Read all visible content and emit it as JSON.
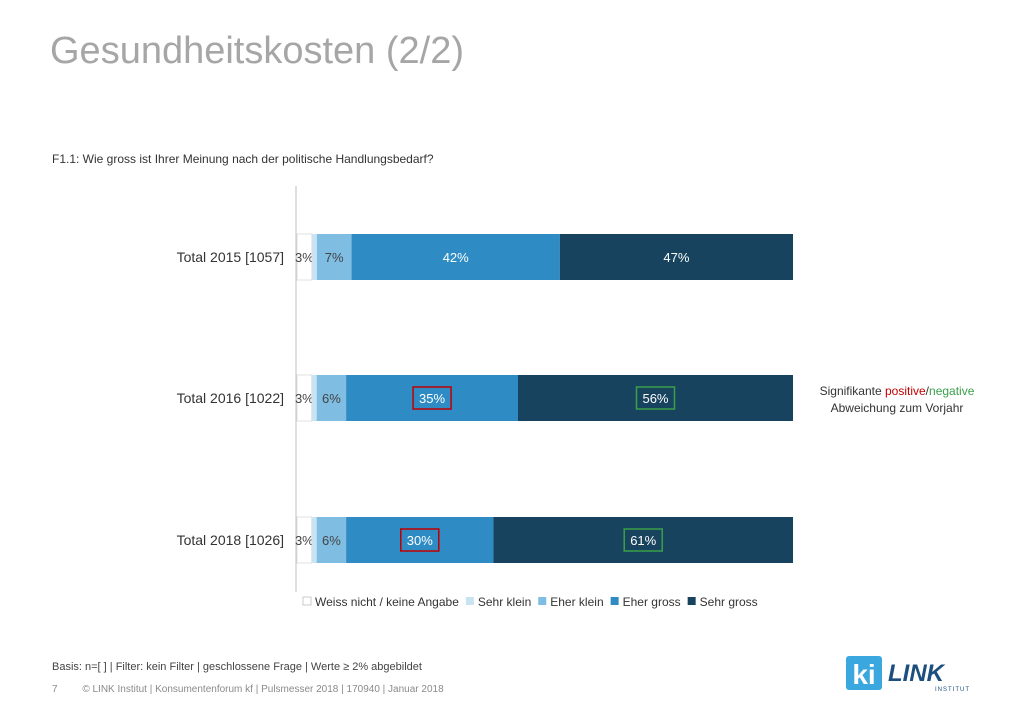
{
  "page": {
    "title": "Gesundheitskosten (2/2)",
    "question": "F1.1: Wie gross ist Ihrer Meinung nach der politische Handlungsbedarf?",
    "significance": {
      "prefix": "Signifikante ",
      "positive": "positive",
      "slash": "/",
      "negative": "negative",
      "line2": "Abweichung zum Vorjahr"
    },
    "footer": {
      "basis": "Basis: n=[ ] | Filter: kein Filter | geschlossene Frage | Werte ≥ 2% abgebildet",
      "page_number": "7",
      "copyright": "© LINK Institut | Konsumentenforum kf | Pulsmesser 2018 | 170940 | Januar 2018"
    },
    "logo": {
      "main": "LINK",
      "sub": "INSTITUT",
      "mark": "ki"
    },
    "colors": {
      "positive": "#c00000",
      "negative": "#3aa04a"
    }
  },
  "chart_data": {
    "type": "bar",
    "orientation": "horizontal",
    "stacked": true,
    "categories": [
      "Total 2015 [1057]",
      "Total 2016 [1022]",
      "Total 2018 [1026]"
    ],
    "series": [
      {
        "name": "Weiss nicht / keine Angabe",
        "color": "#ffffff",
        "values": [
          3,
          3,
          3
        ]
      },
      {
        "name": "Sehr klein",
        "color": "#c9e3f3",
        "values": [
          1,
          1,
          1
        ]
      },
      {
        "name": "Eher klein",
        "color": "#7fbde3",
        "values": [
          7,
          6,
          6
        ]
      },
      {
        "name": "Eher gross",
        "color": "#2e8bc4",
        "values": [
          42,
          35,
          30
        ]
      },
      {
        "name": "Sehr gross",
        "color": "#17435e",
        "values": [
          47,
          56,
          61
        ]
      }
    ],
    "labels": [
      [
        "3%",
        "",
        "7%",
        "42%",
        "47%"
      ],
      [
        "3%",
        "",
        "6%",
        "35%",
        "56%"
      ],
      [
        "3%",
        "",
        "6%",
        "30%",
        "61%"
      ]
    ],
    "highlights": [
      [
        null,
        null,
        null,
        null,
        null
      ],
      [
        null,
        null,
        null,
        "positive",
        "negative"
      ],
      [
        null,
        null,
        null,
        "positive",
        "negative"
      ]
    ],
    "xlim": [
      0,
      100
    ],
    "legend": "bottom"
  }
}
